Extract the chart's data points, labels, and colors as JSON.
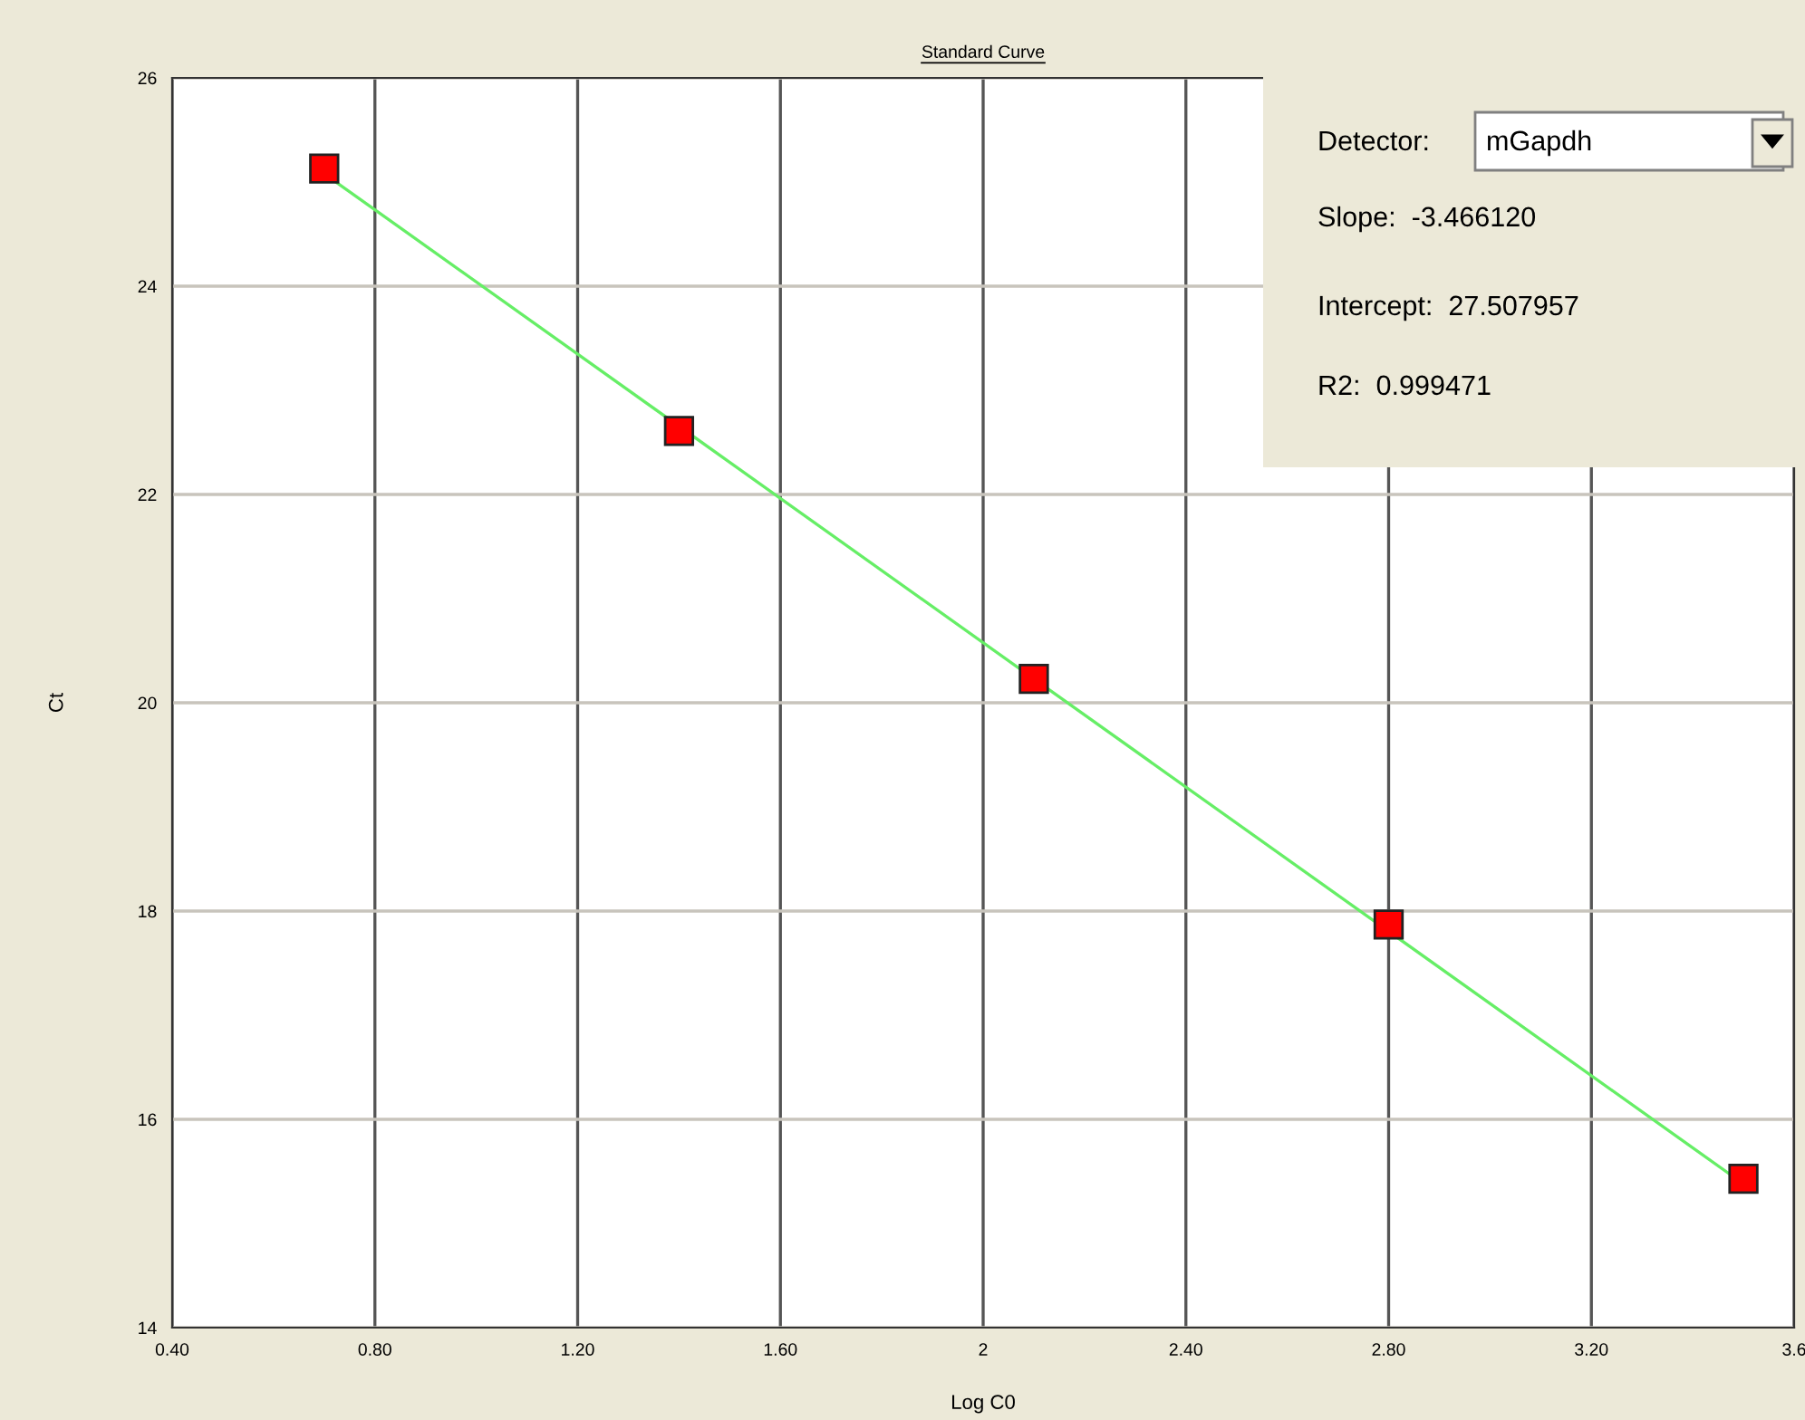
{
  "chart_data": {
    "type": "scatter",
    "title": "Standard Curve",
    "xlabel": "Log C0",
    "ylabel": "Ct",
    "x": [
      0.7,
      1.4,
      2.1,
      2.8,
      3.5
    ],
    "series": [
      {
        "color": "#ff0000",
        "marker": "square",
        "values": [
          25.13,
          22.61,
          20.23,
          17.87,
          15.43
        ]
      },
      {
        "type": "line",
        "color": "#66ee66",
        "x": [
          0.7,
          3.5
        ],
        "values": [
          25.08,
          15.38
        ],
        "marker": "none",
        "line_style": "solid"
      }
    ],
    "xlim": [
      0.4,
      3.6
    ],
    "xticks": [
      {
        "value": 0.4,
        "label": "0.40"
      },
      {
        "value": 0.8,
        "label": "0.80"
      },
      {
        "value": 1.2,
        "label": "1.20"
      },
      {
        "value": 1.6,
        "label": "1.60"
      },
      2,
      {
        "value": 2.4,
        "label": "2.40"
      },
      {
        "value": 2.8,
        "label": "2.80"
      },
      {
        "value": 3.2,
        "label": "3.20"
      },
      {
        "value": 3.6,
        "label": "3.6"
      }
    ],
    "ylim": [
      14,
      26
    ],
    "yticks": [
      14,
      16,
      18,
      20,
      22,
      24,
      26
    ],
    "grid": true,
    "annotations": [
      "Detector:",
      "mGapdh",
      "Slope:  -3.466120",
      "Intercept:  27.507957",
      "R2:  0.999471"
    ]
  }
}
